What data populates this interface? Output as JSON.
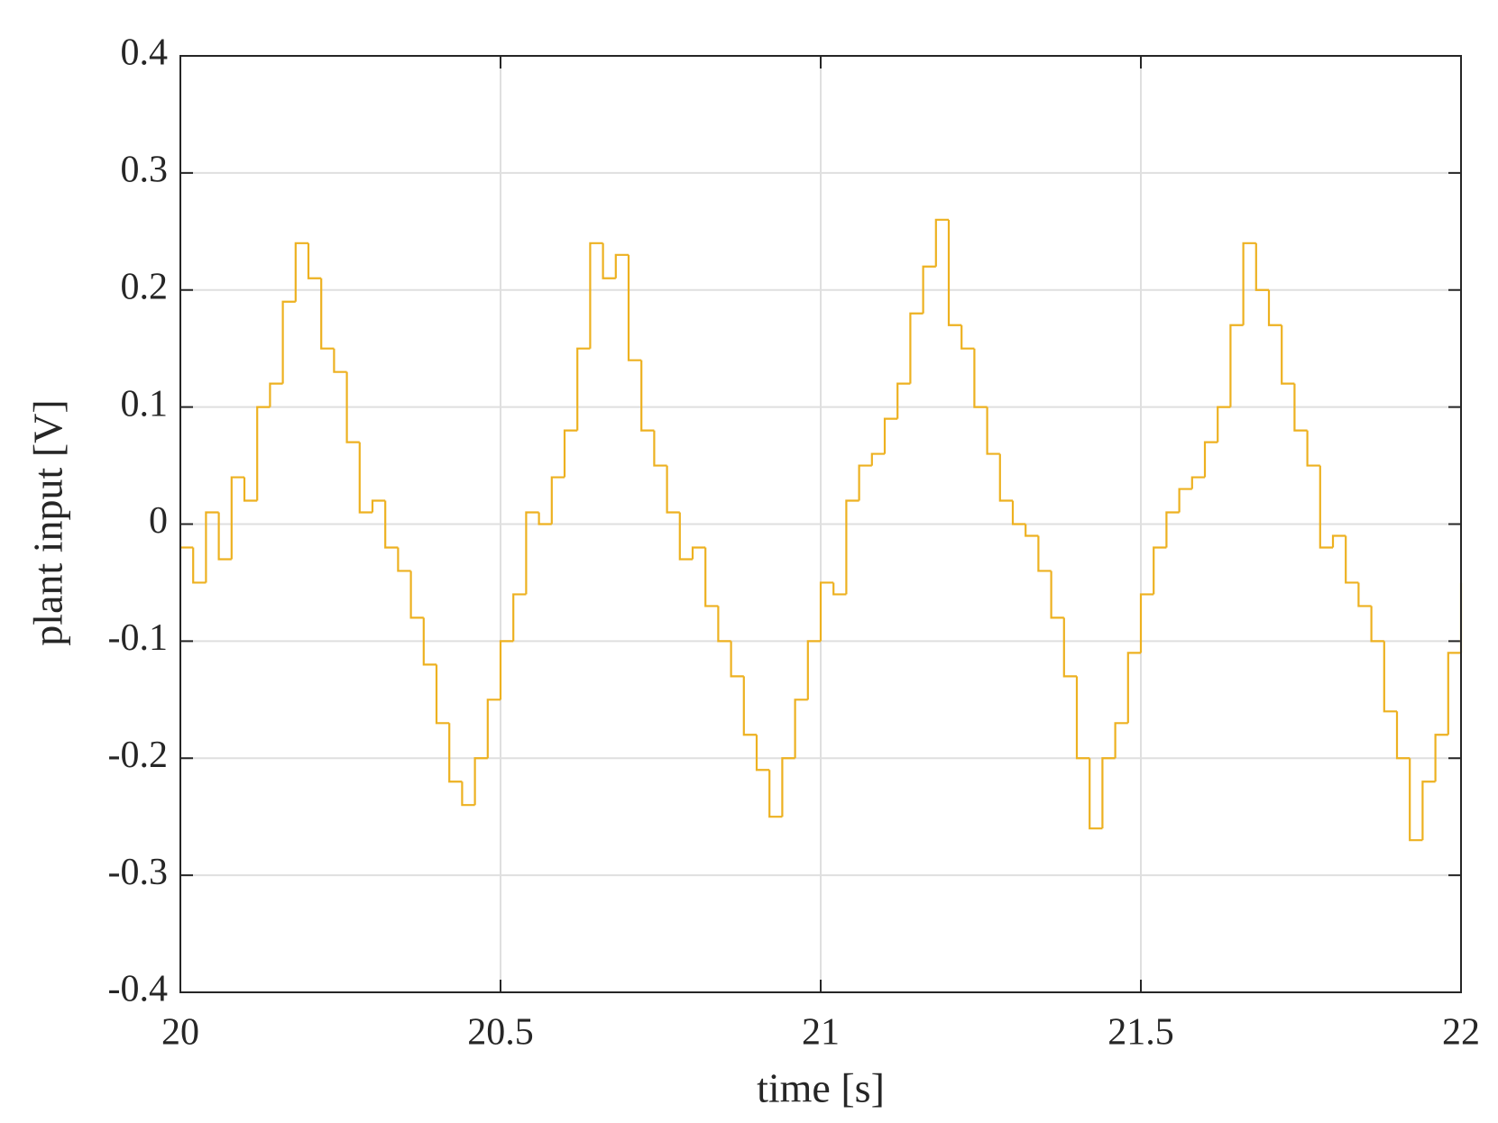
{
  "chart_data": {
    "type": "line",
    "line_style": "steps",
    "xlabel": "time [s]",
    "ylabel": "plant input [V]",
    "x": [
      20.0,
      20.02,
      20.04,
      20.06,
      20.08,
      20.1,
      20.12,
      20.14,
      20.16,
      20.18,
      20.2,
      20.22,
      20.24,
      20.26,
      20.28,
      20.3,
      20.32,
      20.34,
      20.36,
      20.38,
      20.4,
      20.42,
      20.44,
      20.46,
      20.48,
      20.5,
      20.52,
      20.54,
      20.56,
      20.58,
      20.6,
      20.62,
      20.64,
      20.66,
      20.68,
      20.7,
      20.72,
      20.74,
      20.76,
      20.78,
      20.8,
      20.82,
      20.84,
      20.86,
      20.88,
      20.9,
      20.92,
      20.94,
      20.96,
      20.98,
      21.0,
      21.02,
      21.04,
      21.06,
      21.08,
      21.1,
      21.12,
      21.14,
      21.16,
      21.18,
      21.2,
      21.22,
      21.24,
      21.26,
      21.28,
      21.3,
      21.32,
      21.34,
      21.36,
      21.38,
      21.4,
      21.42,
      21.44,
      21.46,
      21.48,
      21.5,
      21.52,
      21.54,
      21.56,
      21.58,
      21.6,
      21.62,
      21.64,
      21.66,
      21.68,
      21.7,
      21.72,
      21.74,
      21.76,
      21.78,
      21.8,
      21.82,
      21.84,
      21.86,
      21.88,
      21.9,
      21.92,
      21.94,
      21.96,
      21.98,
      22.0
    ],
    "series": [
      {
        "color": "#EDB120",
        "values": [
          -0.02,
          -0.05,
          0.01,
          -0.03,
          0.04,
          0.02,
          0.1,
          0.12,
          0.19,
          0.24,
          0.21,
          0.15,
          0.13,
          0.07,
          0.01,
          0.02,
          -0.02,
          -0.04,
          -0.08,
          -0.12,
          -0.17,
          -0.22,
          -0.24,
          -0.2,
          -0.15,
          -0.1,
          -0.06,
          0.01,
          0.0,
          0.04,
          0.08,
          0.15,
          0.24,
          0.21,
          0.23,
          0.14,
          0.08,
          0.05,
          0.01,
          -0.03,
          -0.02,
          -0.07,
          -0.1,
          -0.13,
          -0.18,
          -0.21,
          -0.25,
          -0.2,
          -0.15,
          -0.1,
          -0.05,
          -0.06,
          0.02,
          0.05,
          0.06,
          0.09,
          0.12,
          0.18,
          0.22,
          0.26,
          0.17,
          0.15,
          0.1,
          0.06,
          0.02,
          0.0,
          -0.01,
          -0.04,
          -0.08,
          -0.13,
          -0.2,
          -0.26,
          -0.2,
          -0.17,
          -0.11,
          -0.06,
          -0.02,
          0.01,
          0.03,
          0.04,
          0.07,
          0.1,
          0.17,
          0.24,
          0.2,
          0.17,
          0.12,
          0.08,
          0.05,
          -0.02,
          -0.01,
          -0.05,
          -0.07,
          -0.1,
          -0.16,
          -0.2,
          -0.27,
          -0.22,
          -0.18,
          -0.11,
          -0.05
        ]
      }
    ],
    "xlim": [
      20,
      22
    ],
    "xticks": [
      20,
      20.5,
      21,
      21.5,
      22
    ],
    "ylim": [
      -0.4,
      0.4
    ],
    "yticks": [
      -0.4,
      -0.3,
      -0.2,
      -0.1,
      0,
      0.1,
      0.2,
      0.3,
      0.4
    ],
    "grid": true
  }
}
